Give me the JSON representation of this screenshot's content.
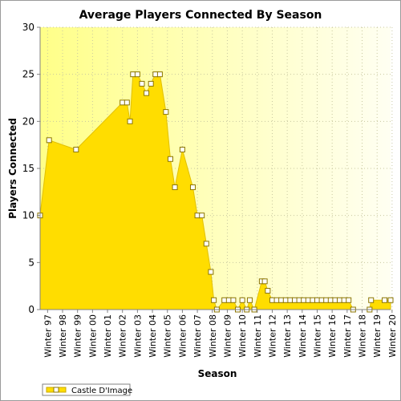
{
  "chart_data": {
    "type": "area",
    "title": "Average Players Connected By Season",
    "xlabel": "Season",
    "ylabel": "Players Connected",
    "ylim": [
      0,
      30
    ],
    "yticks": [
      0,
      5,
      10,
      15,
      20,
      25,
      30
    ],
    "grid": true,
    "legend_position": "bottom-left",
    "fill_color": "#ffdd00",
    "marker_color": "#ffffff",
    "marker_border": "#8b7500",
    "x_tick_labels": [
      "Winter 97",
      "Winter 98",
      "Winter 99",
      "Winter 00",
      "Winter 01",
      "Winter 02",
      "Winter 03",
      "Winter 04",
      "Winter 05",
      "Winter 06",
      "Winter 07",
      "Winter 08",
      "Winter 09",
      "Winter 10",
      "Winter 11",
      "Winter 12",
      "Winter 13",
      "Winter 14",
      "Winter 15",
      "Winter 16",
      "Winter 17",
      "Winter 18",
      "Winter 19",
      "Winter 20"
    ],
    "series": [
      {
        "name": "Castle D'Image",
        "points": [
          [
            0,
            10
          ],
          [
            0.6,
            18
          ],
          [
            2.4,
            17
          ],
          [
            5.5,
            22
          ],
          [
            5.8,
            22
          ],
          [
            6.0,
            20
          ],
          [
            6.2,
            25
          ],
          [
            6.5,
            25
          ],
          [
            6.8,
            24
          ],
          [
            7.1,
            23
          ],
          [
            7.4,
            24
          ],
          [
            7.7,
            25
          ],
          [
            8.0,
            25
          ],
          [
            8.4,
            21
          ],
          [
            8.7,
            16
          ],
          [
            9.0,
            13
          ],
          [
            9.5,
            17
          ],
          [
            10.2,
            13
          ],
          [
            10.5,
            10
          ],
          [
            10.8,
            10
          ],
          [
            11.1,
            7
          ],
          [
            11.4,
            4
          ],
          [
            11.6,
            1
          ],
          [
            11.8,
            0
          ],
          [
            12.3,
            1
          ],
          [
            12.6,
            1
          ],
          [
            12.9,
            1
          ],
          [
            13.2,
            0
          ],
          [
            13.5,
            1
          ],
          [
            13.8,
            0
          ],
          [
            14.0,
            1
          ],
          [
            14.3,
            0
          ],
          [
            14.8,
            3
          ],
          [
            15.0,
            3
          ],
          [
            15.2,
            2
          ],
          [
            15.5,
            1
          ],
          [
            15.8,
            1
          ],
          [
            16.1,
            1
          ],
          [
            16.4,
            1
          ],
          [
            16.7,
            1
          ],
          [
            17.0,
            1
          ],
          [
            17.3,
            1
          ],
          [
            17.6,
            1
          ],
          [
            17.9,
            1
          ],
          [
            18.2,
            1
          ],
          [
            18.5,
            1
          ],
          [
            18.8,
            1
          ],
          [
            19.1,
            1
          ],
          [
            19.4,
            1
          ],
          [
            19.7,
            1
          ],
          [
            20.0,
            1
          ],
          [
            20.3,
            1
          ],
          [
            20.6,
            1
          ],
          [
            20.9,
            0
          ],
          [
            22.0,
            0
          ],
          [
            22.1,
            1
          ],
          [
            23.0,
            1
          ],
          [
            23.4,
            1
          ]
        ]
      }
    ]
  }
}
